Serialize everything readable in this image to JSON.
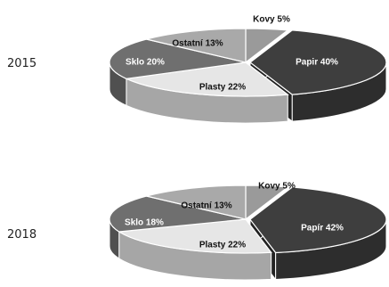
{
  "colors": {
    "Papir": "#3e3e3e",
    "Plasty": "#e6e6e6",
    "Sklo": "#6f6f6f",
    "Ostatni": "#a9a9a9",
    "Kovy": "#9a9a9a"
  },
  "chart_data": [
    {
      "type": "pie",
      "title": "2015",
      "slices": [
        {
          "category": "Kovy",
          "value": 5,
          "label": "Kovy 5%"
        },
        {
          "category": "Papir",
          "value": 40,
          "label": "Papir 40%"
        },
        {
          "category": "Plasty",
          "value": 22,
          "label": "Plasty 22%"
        },
        {
          "category": "Sklo",
          "value": 20,
          "label": "Sklo 20%"
        },
        {
          "category": "Ostatni",
          "value": 13,
          "label": "Ostatní 13%"
        }
      ]
    },
    {
      "type": "pie",
      "title": "2018",
      "slices": [
        {
          "category": "Kovy",
          "value": 5,
          "label": "Kovy 5%"
        },
        {
          "category": "Papir",
          "value": 42,
          "label": "Papír 42%"
        },
        {
          "category": "Plasty",
          "value": 22,
          "label": "Plasty 22%"
        },
        {
          "category": "Sklo",
          "value": 18,
          "label": "Sklo 18%"
        },
        {
          "category": "Ostatni",
          "value": 13,
          "label": "Ostatní 13%"
        }
      ]
    }
  ]
}
